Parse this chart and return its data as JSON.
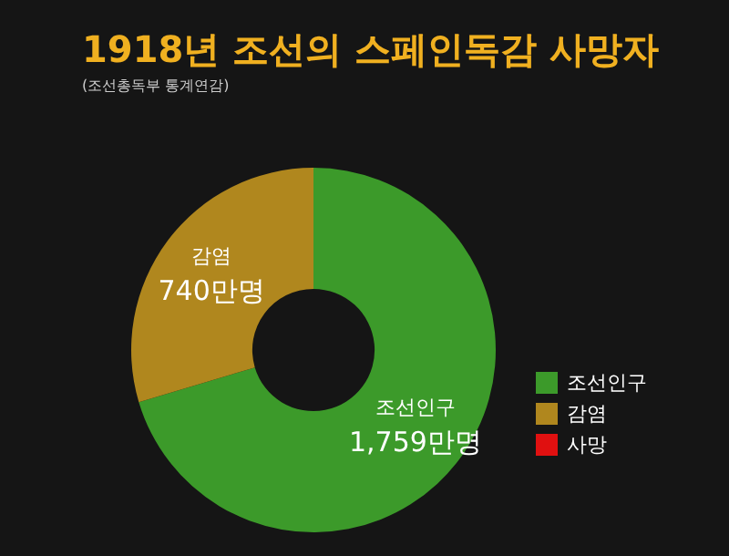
{
  "chart_data": {
    "type": "donut",
    "title": "1918년 조선의 스페인독감 사망자",
    "subtitle": "(조선총독부 통계연감)",
    "categories": [
      "조선인구",
      "감염",
      "사망"
    ],
    "values": [
      1759,
      740,
      null
    ],
    "value_labels": [
      "1,759만명",
      "740만명",
      null
    ],
    "colors": [
      "#3c9a2a",
      "#b0871e",
      "#e01010"
    ],
    "legend": "bottom right"
  }
}
